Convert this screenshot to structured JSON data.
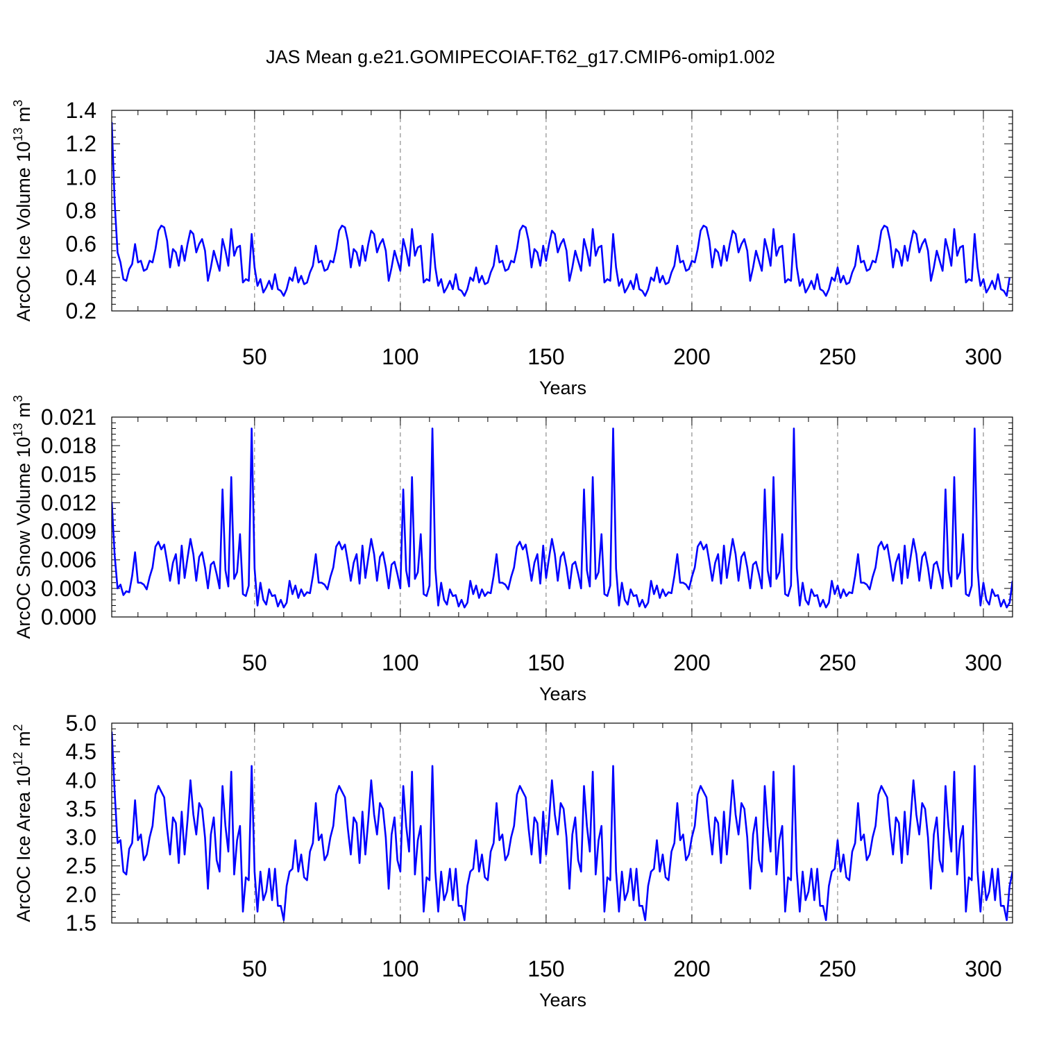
{
  "title": "JAS Mean g.e21.GOMIPECOIAF.T62_g17.CMIP6-omip1.002",
  "line_color": "#0000ff",
  "chart_data": [
    {
      "type": "line",
      "ylabel_main": "ArcOC Ice Volume 10",
      "ylabel_sup": "13",
      "ylabel_unit": " m",
      "ylabel_unit_sup": "3",
      "xlabel": "Years",
      "xlim": [
        1,
        310
      ],
      "ylim": [
        0.2,
        1.4
      ],
      "xticks": [
        50,
        100,
        150,
        200,
        250,
        300
      ],
      "xtick_labels": [
        "50",
        "100",
        "150",
        "200",
        "250",
        "300"
      ],
      "yticks": [
        0.2,
        0.4,
        0.6,
        0.8,
        1.0,
        1.2,
        1.4
      ],
      "ytick_labels": [
        "0.2",
        "0.4",
        "0.6",
        "0.8",
        "1.0",
        "1.2",
        "1.4"
      ],
      "x_start": 1,
      "series": [
        {
          "name": "ArcOC Ice Volume",
          "values": [
            1.33,
            0.85,
            0.55,
            0.49,
            0.39,
            0.38,
            0.45,
            0.48,
            0.6,
            0.49,
            0.5,
            0.44,
            0.45,
            0.5,
            0.49,
            0.57,
            0.68,
            0.71,
            0.7,
            0.62,
            0.46,
            0.57,
            0.55,
            0.47,
            0.59,
            0.5,
            0.6,
            0.68,
            0.66,
            0.55,
            0.6,
            0.63,
            0.56,
            0.38,
            0.46,
            0.56,
            0.5,
            0.44,
            0.63,
            0.56,
            0.47,
            0.69,
            0.53,
            0.58,
            0.59,
            0.37,
            0.39,
            0.38,
            0.66,
            0.46,
            0.35,
            0.39,
            0.31,
            0.34,
            0.38,
            0.33,
            0.42,
            0.33,
            0.32,
            0.29,
            0.33,
            0.4,
            0.38,
            0.46,
            0.37,
            0.41,
            0.36,
            0.37,
            0.43,
            0.47,
            0.59,
            0.49,
            0.5,
            0.44,
            0.45,
            0.5,
            0.49,
            0.57,
            0.68,
            0.71,
            0.7,
            0.62,
            0.46,
            0.57,
            0.55,
            0.47,
            0.59,
            0.5,
            0.6,
            0.68,
            0.66,
            0.55,
            0.6,
            0.63,
            0.56,
            0.38,
            0.46,
            0.56,
            0.5,
            0.44,
            0.63,
            0.56,
            0.47,
            0.69,
            0.53,
            0.58,
            0.59,
            0.37,
            0.39,
            0.38,
            0.66,
            0.46,
            0.35,
            0.39,
            0.31,
            0.34,
            0.38,
            0.33,
            0.42,
            0.33,
            0.32,
            0.29,
            0.33,
            0.4,
            0.38,
            0.46,
            0.37,
            0.41,
            0.36,
            0.37,
            0.43,
            0.47,
            0.59,
            0.49,
            0.5,
            0.44,
            0.45,
            0.5,
            0.49,
            0.57,
            0.68,
            0.71,
            0.7,
            0.62,
            0.46,
            0.57,
            0.55,
            0.47,
            0.59,
            0.5,
            0.6,
            0.68,
            0.66,
            0.55,
            0.6,
            0.63,
            0.56,
            0.38,
            0.46,
            0.56,
            0.5,
            0.44,
            0.63,
            0.56,
            0.47,
            0.69,
            0.53,
            0.58,
            0.59,
            0.37,
            0.39,
            0.38,
            0.66,
            0.46,
            0.35,
            0.39,
            0.31,
            0.34,
            0.38,
            0.33,
            0.42,
            0.33,
            0.32,
            0.29,
            0.33,
            0.4,
            0.38,
            0.46,
            0.37,
            0.41,
            0.36,
            0.37,
            0.43,
            0.47,
            0.59,
            0.49,
            0.5,
            0.44,
            0.45,
            0.5,
            0.49,
            0.57,
            0.68,
            0.71,
            0.7,
            0.62,
            0.46,
            0.57,
            0.55,
            0.47,
            0.59,
            0.5,
            0.6,
            0.68,
            0.66,
            0.55,
            0.6,
            0.63,
            0.56,
            0.38,
            0.46,
            0.56,
            0.5,
            0.44,
            0.63,
            0.56,
            0.47,
            0.69,
            0.53,
            0.58,
            0.59,
            0.37,
            0.39,
            0.38,
            0.66,
            0.46,
            0.35,
            0.39,
            0.31,
            0.34,
            0.38,
            0.33,
            0.42,
            0.33,
            0.32,
            0.29,
            0.33,
            0.4,
            0.38,
            0.46,
            0.37,
            0.41,
            0.36,
            0.37,
            0.43,
            0.47,
            0.59,
            0.49,
            0.5,
            0.44,
            0.45,
            0.5,
            0.49,
            0.57,
            0.68,
            0.71,
            0.7,
            0.62,
            0.46,
            0.57,
            0.55,
            0.47,
            0.59,
            0.5,
            0.6,
            0.68,
            0.66,
            0.55,
            0.6,
            0.63,
            0.56,
            0.38,
            0.46,
            0.56,
            0.5,
            0.44,
            0.63,
            0.56,
            0.47,
            0.69,
            0.53,
            0.58,
            0.59,
            0.37,
            0.39,
            0.38,
            0.66,
            0.46,
            0.35,
            0.39,
            0.31,
            0.34,
            0.38,
            0.33,
            0.42,
            0.33,
            0.32,
            0.29,
            0.4
          ]
        }
      ]
    },
    {
      "type": "line",
      "ylabel_main": "ArcOC Snow Volume 10",
      "ylabel_sup": "13",
      "ylabel_unit": " m",
      "ylabel_unit_sup": "3",
      "xlabel": "Years",
      "xlim": [
        1,
        310
      ],
      "ylim": [
        0.0,
        0.021
      ],
      "xticks": [
        50,
        100,
        150,
        200,
        250,
        300
      ],
      "xtick_labels": [
        "50",
        "100",
        "150",
        "200",
        "250",
        "300"
      ],
      "yticks": [
        0.0,
        0.003,
        0.006,
        0.009,
        0.012,
        0.015,
        0.018,
        0.021
      ],
      "ytick_labels": [
        "0.000",
        "0.003",
        "0.006",
        "0.009",
        "0.012",
        "0.015",
        "0.018",
        "0.021"
      ],
      "x_start": 1,
      "series": [
        {
          "name": "ArcOC Snow Volume",
          "values": [
            0.0121,
            0.0065,
            0.003,
            0.0034,
            0.0023,
            0.0027,
            0.0026,
            0.0043,
            0.0068,
            0.0036,
            0.0036,
            0.0034,
            0.0029,
            0.0042,
            0.0052,
            0.0074,
            0.0079,
            0.0071,
            0.0076,
            0.0058,
            0.0038,
            0.0057,
            0.0066,
            0.0035,
            0.0075,
            0.0041,
            0.0062,
            0.0082,
            0.0066,
            0.0038,
            0.0063,
            0.0068,
            0.0052,
            0.003,
            0.0055,
            0.0058,
            0.0045,
            0.003,
            0.0134,
            0.0049,
            0.0032,
            0.0147,
            0.004,
            0.0047,
            0.0087,
            0.0024,
            0.0022,
            0.0033,
            0.0198,
            0.0051,
            0.0012,
            0.0036,
            0.0018,
            0.0013,
            0.0029,
            0.0022,
            0.0023,
            0.0011,
            0.0018,
            0.001,
            0.0015,
            0.0038,
            0.0024,
            0.0033,
            0.002,
            0.0029,
            0.0022,
            0.0026,
            0.0025,
            0.0043,
            0.0066,
            0.0036,
            0.0036,
            0.0034,
            0.0029,
            0.0042,
            0.0052,
            0.0074,
            0.0079,
            0.0071,
            0.0076,
            0.0058,
            0.0038,
            0.0057,
            0.0066,
            0.0035,
            0.0075,
            0.0041,
            0.0062,
            0.0082,
            0.0066,
            0.0038,
            0.0063,
            0.0068,
            0.0052,
            0.003,
            0.0055,
            0.0058,
            0.0045,
            0.003,
            0.0134,
            0.0049,
            0.0032,
            0.0147,
            0.004,
            0.0047,
            0.0087,
            0.0024,
            0.0022,
            0.0033,
            0.0198,
            0.0051,
            0.0012,
            0.0036,
            0.0018,
            0.0013,
            0.0029,
            0.0022,
            0.0023,
            0.0011,
            0.0018,
            0.001,
            0.0015,
            0.0038,
            0.0024,
            0.0033,
            0.002,
            0.0029,
            0.0022,
            0.0026,
            0.0025,
            0.0043,
            0.0066,
            0.0036,
            0.0036,
            0.0034,
            0.0029,
            0.0042,
            0.0052,
            0.0074,
            0.0079,
            0.0071,
            0.0076,
            0.0058,
            0.0038,
            0.0057,
            0.0066,
            0.0035,
            0.0075,
            0.0041,
            0.0062,
            0.0082,
            0.0066,
            0.0038,
            0.0063,
            0.0068,
            0.0052,
            0.003,
            0.0055,
            0.0058,
            0.0045,
            0.003,
            0.0134,
            0.0049,
            0.0032,
            0.0147,
            0.004,
            0.0047,
            0.0087,
            0.0024,
            0.0022,
            0.0033,
            0.0198,
            0.0051,
            0.0012,
            0.0036,
            0.0018,
            0.0013,
            0.0029,
            0.0022,
            0.0023,
            0.0011,
            0.0018,
            0.001,
            0.0015,
            0.0038,
            0.0024,
            0.0033,
            0.002,
            0.0029,
            0.0022,
            0.0026,
            0.0025,
            0.0043,
            0.0066,
            0.0036,
            0.0036,
            0.0034,
            0.0029,
            0.0042,
            0.0052,
            0.0074,
            0.0079,
            0.0071,
            0.0076,
            0.0058,
            0.0038,
            0.0057,
            0.0066,
            0.0035,
            0.0075,
            0.0041,
            0.0062,
            0.0082,
            0.0066,
            0.0038,
            0.0063,
            0.0068,
            0.0052,
            0.003,
            0.0055,
            0.0058,
            0.0045,
            0.003,
            0.0134,
            0.0049,
            0.0032,
            0.0147,
            0.004,
            0.0047,
            0.0087,
            0.0024,
            0.0022,
            0.0033,
            0.0198,
            0.0051,
            0.0012,
            0.0036,
            0.0018,
            0.0013,
            0.0029,
            0.0022,
            0.0023,
            0.0011,
            0.0018,
            0.001,
            0.0015,
            0.0038,
            0.0024,
            0.0033,
            0.002,
            0.0029,
            0.0022,
            0.0026,
            0.0025,
            0.0043,
            0.0066,
            0.0036,
            0.0036,
            0.0034,
            0.0029,
            0.0042,
            0.0052,
            0.0074,
            0.0079,
            0.0071,
            0.0076,
            0.0058,
            0.0038,
            0.0057,
            0.0066,
            0.0035,
            0.0075,
            0.0041,
            0.0062,
            0.0082,
            0.0066,
            0.0038,
            0.0063,
            0.0068,
            0.0052,
            0.003,
            0.0055,
            0.0058,
            0.0045,
            0.003,
            0.0134,
            0.0049,
            0.0032,
            0.0147,
            0.004,
            0.0047,
            0.0087,
            0.0024,
            0.0022,
            0.0033,
            0.0198,
            0.0051,
            0.0012,
            0.0036,
            0.0018,
            0.0013,
            0.0029,
            0.0022,
            0.0023,
            0.0011,
            0.0018,
            0.001,
            0.0015,
            0.0038
          ]
        }
      ]
    },
    {
      "type": "line",
      "ylabel_main": "ArcOC Ice Area 10",
      "ylabel_sup": "12",
      "ylabel_unit": " m",
      "ylabel_unit_sup": "2",
      "xlabel": "Years",
      "xlim": [
        1,
        310
      ],
      "ylim": [
        1.5,
        5.0
      ],
      "xticks": [
        50,
        100,
        150,
        200,
        250,
        300
      ],
      "xtick_labels": [
        "50",
        "100",
        "150",
        "200",
        "250",
        "300"
      ],
      "yticks": [
        1.5,
        2.0,
        2.5,
        3.0,
        3.5,
        4.0,
        4.5,
        5.0
      ],
      "ytick_labels": [
        "1.5",
        "2.0",
        "2.5",
        "3.0",
        "3.5",
        "4.0",
        "4.5",
        "5.0"
      ],
      "x_start": 1,
      "series": [
        {
          "name": "ArcOC Ice Area",
          "values": [
            4.85,
            3.8,
            2.9,
            2.95,
            2.4,
            2.35,
            2.8,
            2.9,
            3.65,
            2.95,
            3.05,
            2.6,
            2.7,
            3.0,
            3.2,
            3.75,
            3.9,
            3.8,
            3.7,
            3.15,
            2.7,
            3.35,
            3.25,
            2.55,
            3.45,
            2.7,
            3.3,
            4.0,
            3.4,
            3.05,
            3.6,
            3.5,
            3.0,
            2.1,
            3.05,
            3.35,
            2.6,
            2.4,
            3.9,
            3.2,
            2.75,
            4.15,
            2.35,
            2.95,
            3.2,
            1.7,
            2.3,
            2.25,
            4.25,
            2.4,
            1.7,
            2.4,
            1.9,
            2.05,
            2.45,
            1.9,
            2.45,
            1.8,
            1.8,
            1.55,
            2.15,
            2.4,
            2.45,
            2.95,
            2.4,
            2.7,
            2.3,
            2.25,
            2.75,
            2.9,
            3.6,
            2.95,
            3.05,
            2.6,
            2.7,
            3.0,
            3.2,
            3.75,
            3.9,
            3.8,
            3.7,
            3.15,
            2.7,
            3.35,
            3.25,
            2.55,
            3.45,
            2.7,
            3.3,
            4.0,
            3.4,
            3.05,
            3.6,
            3.5,
            3.0,
            2.1,
            3.05,
            3.35,
            2.6,
            2.4,
            3.9,
            3.2,
            2.75,
            4.15,
            2.35,
            2.95,
            3.2,
            1.7,
            2.3,
            2.25,
            4.25,
            2.4,
            1.7,
            2.4,
            1.9,
            2.05,
            2.45,
            1.9,
            2.45,
            1.8,
            1.8,
            1.55,
            2.15,
            2.4,
            2.45,
            2.95,
            2.4,
            2.7,
            2.3,
            2.25,
            2.75,
            2.9,
            3.6,
            2.95,
            3.05,
            2.6,
            2.7,
            3.0,
            3.2,
            3.75,
            3.9,
            3.8,
            3.7,
            3.15,
            2.7,
            3.35,
            3.25,
            2.55,
            3.45,
            2.7,
            3.3,
            4.0,
            3.4,
            3.05,
            3.6,
            3.5,
            3.0,
            2.1,
            3.05,
            3.35,
            2.6,
            2.4,
            3.9,
            3.2,
            2.75,
            4.15,
            2.35,
            2.95,
            3.2,
            1.7,
            2.3,
            2.25,
            4.25,
            2.4,
            1.7,
            2.4,
            1.9,
            2.05,
            2.45,
            1.9,
            2.45,
            1.8,
            1.8,
            1.55,
            2.15,
            2.4,
            2.45,
            2.95,
            2.4,
            2.7,
            2.3,
            2.25,
            2.75,
            2.9,
            3.6,
            2.95,
            3.05,
            2.6,
            2.7,
            3.0,
            3.2,
            3.75,
            3.9,
            3.8,
            3.7,
            3.15,
            2.7,
            3.35,
            3.25,
            2.55,
            3.45,
            2.7,
            3.3,
            4.0,
            3.4,
            3.05,
            3.6,
            3.5,
            3.0,
            2.1,
            3.05,
            3.35,
            2.6,
            2.4,
            3.9,
            3.2,
            2.75,
            4.15,
            2.35,
            2.95,
            3.2,
            1.7,
            2.3,
            2.25,
            4.25,
            2.4,
            1.7,
            2.4,
            1.9,
            2.05,
            2.45,
            1.9,
            2.45,
            1.8,
            1.8,
            1.55,
            2.15,
            2.4,
            2.45,
            2.95,
            2.4,
            2.7,
            2.3,
            2.25,
            2.75,
            2.9,
            3.6,
            2.95,
            3.05,
            2.6,
            2.7,
            3.0,
            3.2,
            3.75,
            3.9,
            3.8,
            3.7,
            3.15,
            2.7,
            3.35,
            3.25,
            2.55,
            3.45,
            2.7,
            3.3,
            4.0,
            3.4,
            3.05,
            3.6,
            3.5,
            3.0,
            2.1,
            3.05,
            3.35,
            2.6,
            2.4,
            3.9,
            3.2,
            2.75,
            4.15,
            2.35,
            2.95,
            3.2,
            1.7,
            2.3,
            2.25,
            4.25,
            2.4,
            1.7,
            2.4,
            1.9,
            2.05,
            2.45,
            1.9,
            2.45,
            1.8,
            1.8,
            1.55,
            2.15,
            2.4
          ]
        }
      ]
    }
  ]
}
